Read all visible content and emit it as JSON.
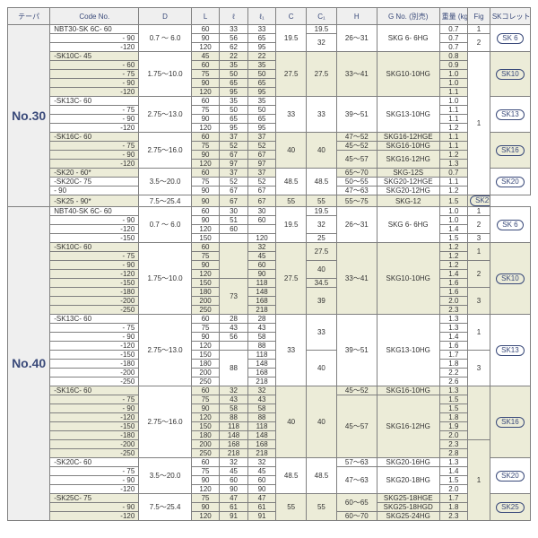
{
  "header": {
    "taper": "テーパ",
    "code": "Code No.",
    "D": "D",
    "L": "L",
    "e": "ℓ",
    "e1": "ℓ₁",
    "C": "C",
    "C1": "C₁",
    "H": "H",
    "G": "G No.\n(別売)",
    "wt": "重量\n(kg)",
    "fig": "Fig",
    "sk": "SKコレット"
  },
  "taper30": "No.30",
  "taper40": "No.40",
  "sk": {
    "sk6": "SK 6",
    "sk10": "SK10",
    "sk13": "SK13",
    "sk16": "SK16",
    "sk20": "SK20",
    "sk25": "SK25"
  },
  "d": {
    "d07_60": "0.7 ～ 6.0",
    "d175_10": "1.75～10.0",
    "d275_13": "2.75～13.0",
    "d275_16": "2.75～16.0",
    "d35_20": "3.5～20.0",
    "d75_254": "7.5～25.4"
  },
  "fig": {
    "f1": "1",
    "f2": "2",
    "f3": "3"
  },
  "rows30": [
    {
      "code": "NBT30-SK 6C- 60",
      "L": "60",
      "e": "33",
      "e1": "33",
      "C": "19.5",
      "C1": "19.5",
      "H": "26～31",
      "G": "SKG 6- 6HG",
      "wt": "0.7",
      "fig": "1"
    },
    {
      "code": "- 90",
      "L": "90",
      "e": "56",
      "e1": "65",
      "C1": "32",
      "wt": "0.7",
      "fig": "2"
    },
    {
      "code": "-120",
      "L": "120",
      "e": "62",
      "e1": "95",
      "wt": "0.7"
    },
    {
      "code": "-SK10C- 45",
      "shade": true,
      "L": "45",
      "e": "22",
      "e1": "22",
      "C": "27.5",
      "C1": "27.5",
      "H": "33～41",
      "G": "SKG10-10HG",
      "wt": "0.8"
    },
    {
      "code": "- 60",
      "shade": true,
      "L": "60",
      "e": "35",
      "e1": "35",
      "wt": "0.9"
    },
    {
      "code": "- 75",
      "shade": true,
      "L": "75",
      "e": "50",
      "e1": "50",
      "wt": "1.0"
    },
    {
      "code": "- 90",
      "shade": true,
      "L": "90",
      "e": "65",
      "e1": "65",
      "wt": "1.0"
    },
    {
      "code": "-120",
      "shade": true,
      "L": "120",
      "e": "95",
      "e1": "95",
      "wt": "1.1"
    },
    {
      "code": "-SK13C- 60",
      "L": "60",
      "e": "35",
      "e1": "35",
      "C": "33",
      "C1": "33",
      "H": "39～51",
      "G": "SKG13-10HG",
      "wt": "1.0"
    },
    {
      "code": "- 75",
      "L": "75",
      "e": "50",
      "e1": "50",
      "wt": "1.1"
    },
    {
      "code": "- 90",
      "L": "90",
      "e": "65",
      "e1": "65",
      "wt": "1.1"
    },
    {
      "code": "-120",
      "L": "120",
      "e": "95",
      "e1": "95",
      "wt": "1.2"
    },
    {
      "code": "-SK16C- 60",
      "shade": true,
      "L": "60",
      "e": "37",
      "e1": "37",
      "C": "40",
      "C1": "40",
      "H": "47～52",
      "G": "SKG16-12HGE",
      "wt": "1.1"
    },
    {
      "code": "- 75",
      "shade": true,
      "L": "75",
      "e": "52",
      "e1": "52",
      "H": "45～52",
      "G": "SKG16-10HG",
      "wt": "1.1"
    },
    {
      "code": "- 90",
      "shade": true,
      "L": "90",
      "e": "67",
      "e1": "67",
      "H": "45～57",
      "G": "SKG16-12HG",
      "wt": "1.2"
    },
    {
      "code": "-120",
      "shade": true,
      "L": "120",
      "e": "97",
      "e1": "97",
      "wt": "1.3"
    },
    {
      "code": "-SK20 - 60*",
      "shade": true,
      "L": "60",
      "e": "37",
      "e1": "37",
      "C": "48.5",
      "C1": "48.5",
      "H": "65～70",
      "G": "SKG-12S",
      "wt": "0.7"
    },
    {
      "code": "-SK20C- 75",
      "L": "75",
      "e": "52",
      "e1": "52",
      "H": "50～55",
      "G": "SKG20-12HGE",
      "wt": "1.1"
    },
    {
      "code": "- 90",
      "L": "90",
      "e": "67",
      "e1": "67",
      "H": "47～63",
      "G": "SKG20-12HG",
      "wt": "1.2"
    },
    {
      "code": "-SK25 - 90*",
      "shade": true,
      "L": "90",
      "e": "67",
      "e1": "67",
      "C": "55",
      "C1": "55",
      "H": "55～75",
      "G": "SKG-12",
      "wt": "1.5"
    }
  ],
  "rows40": [
    {
      "code": "NBT40-SK 6C- 60",
      "L": "60",
      "e": "30",
      "e1": "30",
      "C": "19.5",
      "C1": "19.5",
      "H": "26～31",
      "G": "SKG 6- 6HG",
      "wt": "1.0",
      "fig": "1"
    },
    {
      "code": "- 90",
      "L": "90",
      "e": "51",
      "e1": "60",
      "C1": "32",
      "wt": "1.0",
      "fig": "2"
    },
    {
      "code": "-120",
      "L": "120",
      "e": "60",
      "e1": "",
      "wt": "1.4"
    },
    {
      "code": "-150",
      "L": "150",
      "e": "",
      "e1": "120",
      "C1": "25",
      "wt": "1.5",
      "fig": "3"
    },
    {
      "code": "-SK10C- 60",
      "shade": true,
      "L": "60",
      "e": "32",
      "e1": "32",
      "C": "27.5",
      "C1": "27.5",
      "H": "33～41",
      "G": "SKG10-10HG",
      "wt": "1.2",
      "fig": "1"
    },
    {
      "code": "- 75",
      "shade": true,
      "L": "75",
      "e": "45",
      "e1": "45",
      "wt": "1.2"
    },
    {
      "code": "- 90",
      "shade": true,
      "L": "90",
      "e": "48",
      "e1": "60",
      "C1": "40",
      "wt": "1.2",
      "fig": "2"
    },
    {
      "code": "-120",
      "shade": true,
      "L": "120",
      "e": "",
      "e1": "90",
      "wt": "1.4"
    },
    {
      "code": "-150",
      "shade": true,
      "L": "150",
      "e": "73",
      "e1": "118",
      "C1": "34.5",
      "wt": "1.6"
    },
    {
      "code": "-180",
      "shade": true,
      "L": "180",
      "e": "",
      "e1": "148",
      "C1": "39",
      "wt": "1.6",
      "fig": "3"
    },
    {
      "code": "-200",
      "shade": true,
      "L": "200",
      "e": "",
      "e1": "168",
      "wt": "2.0"
    },
    {
      "code": "-250",
      "shade": true,
      "L": "250",
      "e": "",
      "e1": "218",
      "wt": "2.3"
    },
    {
      "code": "-SK13C- 60",
      "L": "60",
      "e": "28",
      "e1": "28",
      "C": "33",
      "C1": "33",
      "H": "39～51",
      "G": "SKG13-10HG",
      "wt": "1.3",
      "fig": "1"
    },
    {
      "code": "- 75",
      "L": "75",
      "e": "43",
      "e1": "43",
      "wt": "1.3"
    },
    {
      "code": "- 90",
      "L": "90",
      "e": "56",
      "e1": "58",
      "wt": "1.4"
    },
    {
      "code": "-120",
      "L": "120",
      "e": "",
      "e1": "88",
      "wt": "1.6"
    },
    {
      "code": "-150",
      "L": "150",
      "e": "88",
      "e1": "118",
      "C1": "40",
      "wt": "1.7",
      "fig": "3"
    },
    {
      "code": "-180",
      "L": "180",
      "e": "",
      "e1": "148",
      "wt": "1.8"
    },
    {
      "code": "-200",
      "L": "200",
      "e": "",
      "e1": "168",
      "wt": "2.2"
    },
    {
      "code": "-250",
      "L": "250",
      "e": "",
      "e1": "218",
      "wt": "2.6"
    },
    {
      "code": "-SK16C- 60",
      "shade": true,
      "L": "60",
      "e": "32",
      "e1": "32",
      "C": "40",
      "C1": "40",
      "H": "45～52",
      "G": "SKG16-10HG",
      "wt": "1.3"
    },
    {
      "code": "- 75",
      "shade": true,
      "L": "75",
      "e": "43",
      "e1": "43",
      "H": "45～57",
      "G": "SKG16-12HG",
      "wt": "1.5"
    },
    {
      "code": "- 90",
      "shade": true,
      "L": "90",
      "e": "58",
      "e1": "58",
      "wt": "1.5"
    },
    {
      "code": "-120",
      "shade": true,
      "L": "120",
      "e": "88",
      "e1": "88",
      "wt": "1.8"
    },
    {
      "code": "-150",
      "shade": true,
      "L": "150",
      "e": "118",
      "e1": "118",
      "wt": "1.9"
    },
    {
      "code": "-180",
      "shade": true,
      "L": "180",
      "e": "148",
      "e1": "148",
      "wt": "2.0"
    },
    {
      "code": "-200",
      "shade": true,
      "L": "200",
      "e": "168",
      "e1": "168",
      "wt": "2.3",
      "fig": "1"
    },
    {
      "code": "-250",
      "shade": true,
      "L": "250",
      "e": "218",
      "e1": "218",
      "wt": "2.8"
    },
    {
      "code": "-SK20C- 60",
      "L": "60",
      "e": "32",
      "e1": "32",
      "C": "48.5",
      "C1": "48.5",
      "H": "57～63",
      "G": "SKG20-16HG",
      "wt": "1.3"
    },
    {
      "code": "- 75",
      "L": "75",
      "e": "45",
      "e1": "45",
      "H": "47～63",
      "G": "SKG20-18HG",
      "wt": "1.4"
    },
    {
      "code": "- 90",
      "L": "90",
      "e": "60",
      "e1": "60",
      "wt": "1.5"
    },
    {
      "code": "-120",
      "L": "120",
      "e": "90",
      "e1": "90",
      "wt": "2.0"
    },
    {
      "code": "-SK25C- 75",
      "shade": true,
      "L": "75",
      "e": "47",
      "e1": "47",
      "C": "55",
      "C1": "55",
      "H": "60～65",
      "G": "SKG25-18HGE",
      "wt": "1.7"
    },
    {
      "code": "- 90",
      "shade": true,
      "L": "90",
      "e": "61",
      "e1": "61",
      "G": "SKG25-18HGD",
      "wt": "1.8"
    },
    {
      "code": "-120",
      "shade": true,
      "L": "120",
      "e": "91",
      "e1": "91",
      "H": "60～70",
      "G": "SKG25-24HG",
      "wt": "2.3"
    }
  ]
}
